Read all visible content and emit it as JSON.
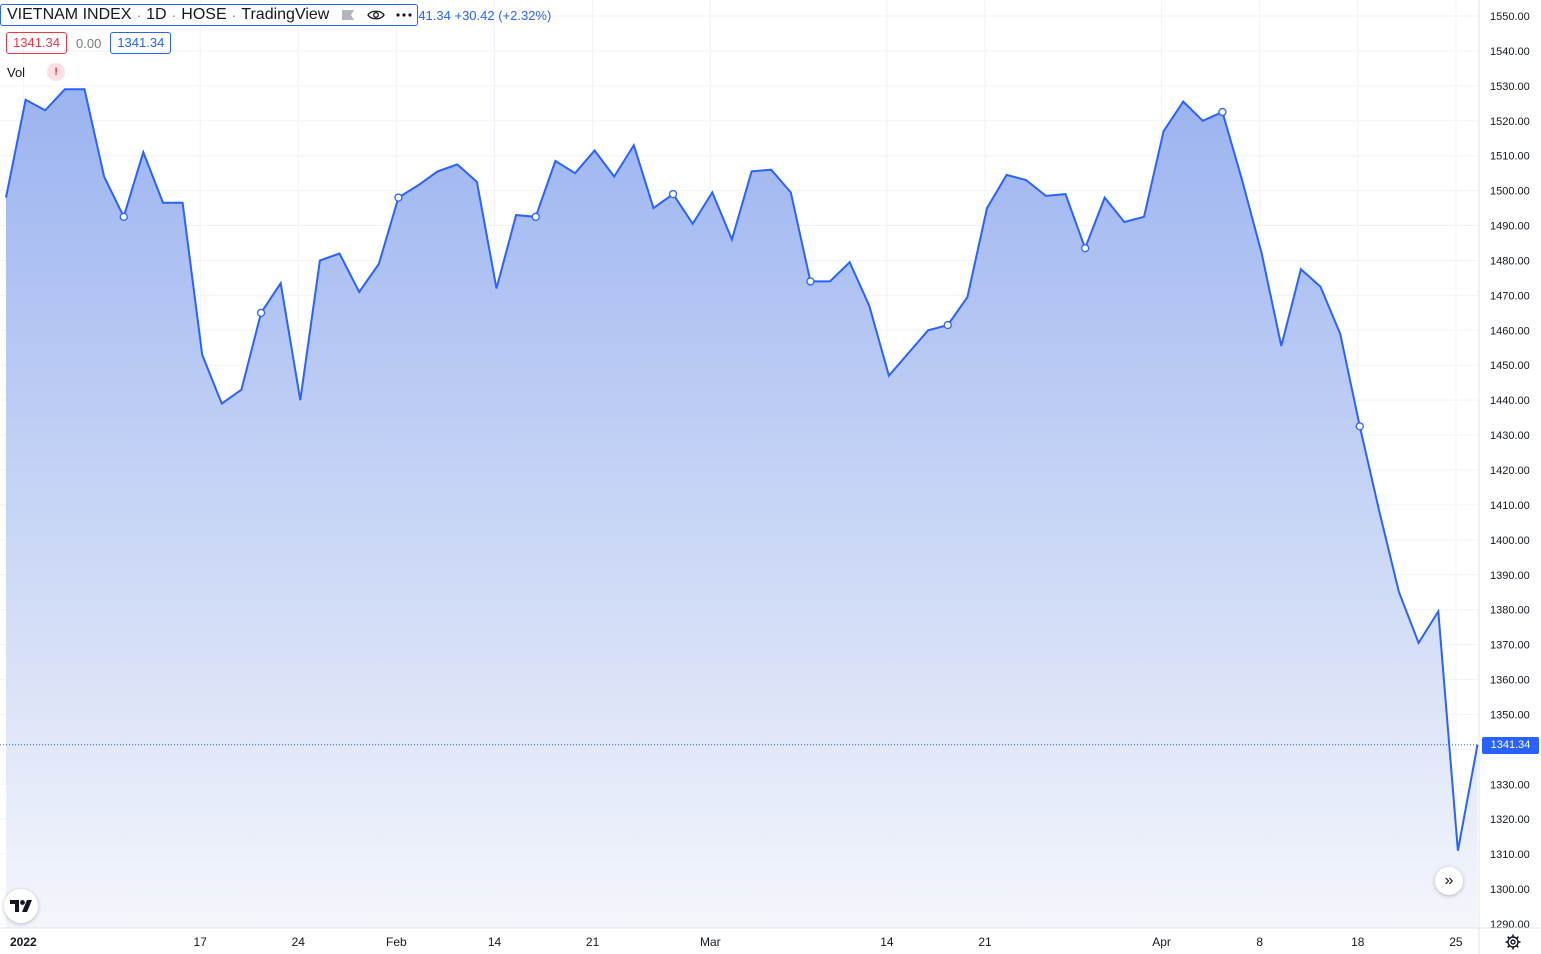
{
  "header": {
    "symbol": "VIETNAM INDEX",
    "interval": "1D",
    "exchange": "HOSE",
    "source": "TradingView",
    "change_text": "41.34 +30.42 (+2.32%)",
    "ohlc_open": "1341.34",
    "ohlc_change": "0.00",
    "ohlc_close": "1341.34",
    "vol_label": "Vol",
    "vol_warning": "!"
  },
  "price_tag": "1341.34",
  "colors": {
    "line": "#2962ff",
    "area_top": "#9bb3f0",
    "area_bottom": "#f4f6fb",
    "grid": "#f0f3fa",
    "red": "#f23645"
  },
  "icons": {
    "eye": "eye-icon",
    "more": "more-icon",
    "flag": "flag-icon",
    "logo": "tradingview-logo-icon",
    "scroll": "scroll-right-icon",
    "gear": "gear-icon"
  },
  "chart_data": {
    "type": "area",
    "title": "VIETNAM INDEX · 1D · HOSE · TradingView",
    "xlabel": "",
    "ylabel": "",
    "ylim": [
      1290,
      1550
    ],
    "y_ticks": [
      "1290.00",
      "1300.00",
      "1310.00",
      "1320.00",
      "1330.00",
      "1340.00",
      "1350.00",
      "1360.00",
      "1370.00",
      "1380.00",
      "1390.00",
      "1400.00",
      "1410.00",
      "1420.00",
      "1430.00",
      "1440.00",
      "1450.00",
      "1460.00",
      "1470.00",
      "1480.00",
      "1490.00",
      "1500.00",
      "1510.00",
      "1520.00",
      "1530.00",
      "1540.00",
      "1550.00"
    ],
    "x_ticks": [
      {
        "label": "2022",
        "index": 1,
        "bold": true
      },
      {
        "label": "17",
        "index": 10
      },
      {
        "label": "24",
        "index": 15
      },
      {
        "label": "Feb",
        "index": 20
      },
      {
        "label": "14",
        "index": 25
      },
      {
        "label": "21",
        "index": 30
      },
      {
        "label": "Mar",
        "index": 36
      },
      {
        "label": "14",
        "index": 45
      },
      {
        "label": "21",
        "index": 50
      },
      {
        "label": "Apr",
        "index": 59
      },
      {
        "label": "8",
        "index": 64
      },
      {
        "label": "18",
        "index": 69
      },
      {
        "label": "25",
        "index": 74
      }
    ],
    "values": [
      1498,
      1526,
      1523,
      1529,
      1529,
      1504,
      1492.5,
      1511,
      1496.5,
      1496.5,
      1453,
      1439,
      1443,
      1465,
      1473.5,
      1440,
      1480,
      1482,
      1471,
      1479,
      1498,
      1501.5,
      1505.5,
      1507.5,
      1502.5,
      1472,
      1493,
      1492.5,
      1508.5,
      1505,
      1511.5,
      1504,
      1513,
      1495,
      1499,
      1490.5,
      1499.5,
      1486,
      1505.5,
      1506,
      1499.5,
      1474,
      1474,
      1479.5,
      1467,
      1447,
      1453.5,
      1460,
      1461.5,
      1469.5,
      1495,
      1504.5,
      1503,
      1498.5,
      1499,
      1483.5,
      1498,
      1491,
      1492.5,
      1517,
      1525.5,
      1520,
      1522.5,
      1503,
      1482,
      1455.5,
      1477.5,
      1472.5,
      1459,
      1432.5,
      1408,
      1385,
      1370.5,
      1379.5,
      1311,
      1341.34
    ],
    "marker_indices": [
      6,
      13,
      20,
      27,
      34,
      41,
      48,
      55,
      62,
      69
    ],
    "last_value": 1341.34,
    "grid": true
  }
}
